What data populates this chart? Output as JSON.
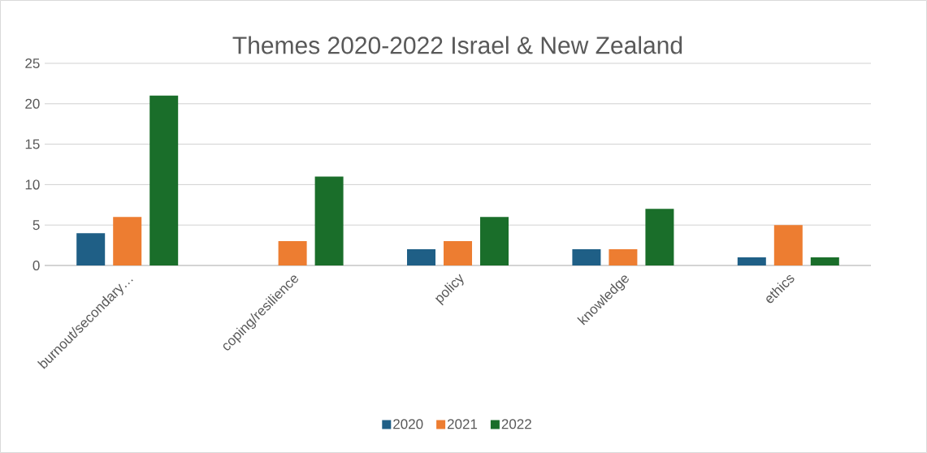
{
  "chart_data": {
    "type": "bar",
    "title": "Themes 2020-2022 Israel & New Zealand",
    "categories": [
      "burnout/secondary…",
      "coping/resilience",
      "policy",
      "knowledge",
      "ethics"
    ],
    "series": [
      {
        "name": "2020",
        "color": "#1f5f86",
        "values": [
          4,
          0,
          2,
          2,
          1
        ]
      },
      {
        "name": "2021",
        "color": "#ed7d31",
        "values": [
          6,
          3,
          3,
          2,
          5
        ]
      },
      {
        "name": "2022",
        "color": "#1a6e2a",
        "values": [
          21,
          11,
          6,
          7,
          1
        ]
      }
    ],
    "ylim": [
      0,
      25
    ],
    "yticks": [
      0,
      5,
      10,
      15,
      20,
      25
    ],
    "grid": "y",
    "legend": "bottom"
  }
}
